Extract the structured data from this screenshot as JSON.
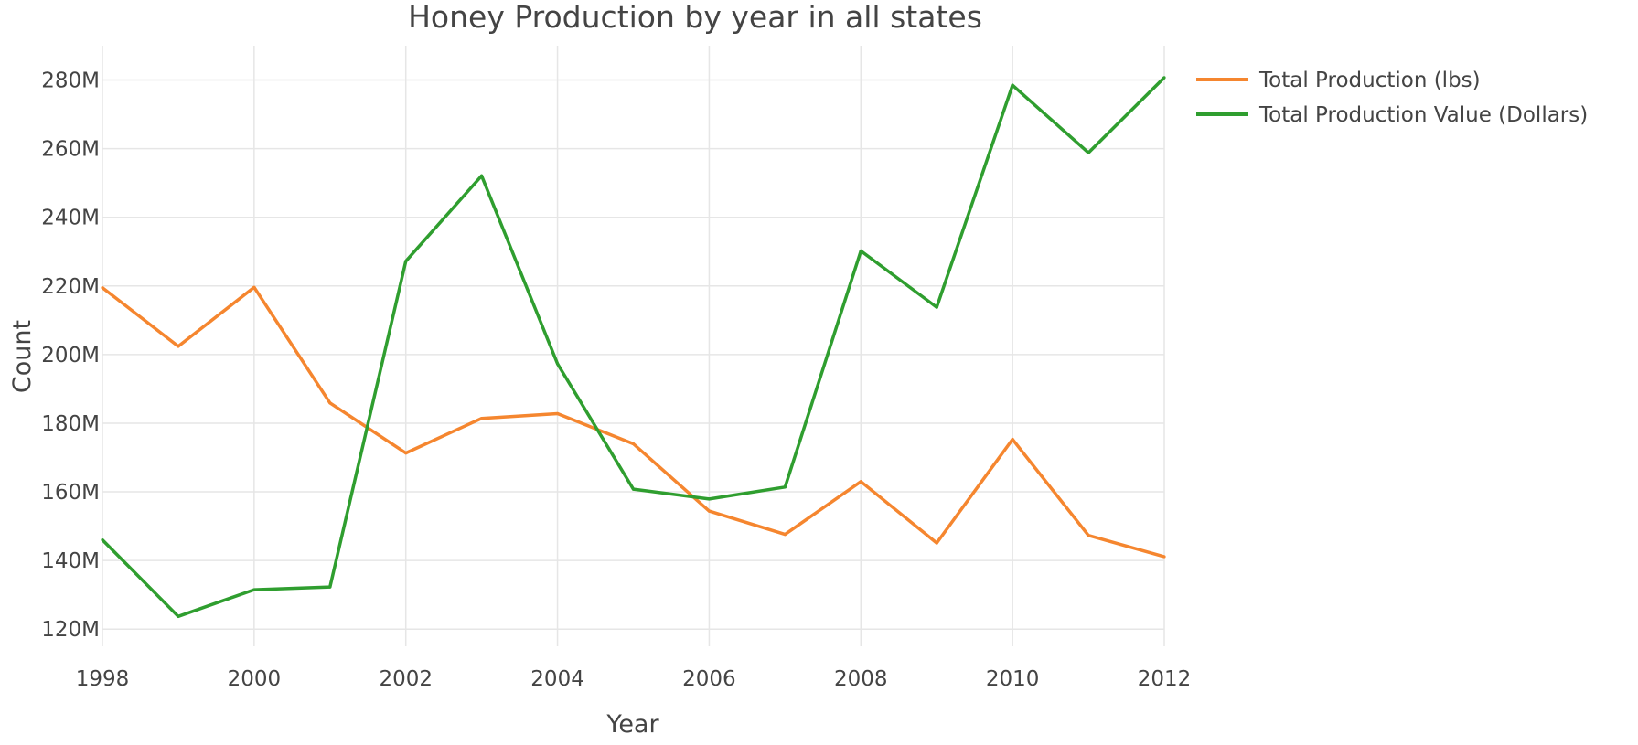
{
  "chart_data": {
    "type": "line",
    "title": "Honey Production by year in all states",
    "xlabel": "Year",
    "ylabel": "Count",
    "x": [
      1998,
      1999,
      2000,
      2001,
      2002,
      2003,
      2004,
      2005,
      2006,
      2007,
      2008,
      2009,
      2010,
      2011,
      2012
    ],
    "xlim": [
      1998,
      2012
    ],
    "ylim": [
      115000000,
      290000000
    ],
    "x_ticks": [
      1998,
      2000,
      2002,
      2004,
      2006,
      2008,
      2010,
      2012
    ],
    "x_tick_labels": [
      "1998",
      "2000",
      "2002",
      "2004",
      "2006",
      "2008",
      "2010",
      "2012"
    ],
    "y_ticks": [
      120000000,
      140000000,
      160000000,
      180000000,
      200000000,
      220000000,
      240000000,
      260000000,
      280000000
    ],
    "y_tick_labels": [
      "120M",
      "140M",
      "160M",
      "180M",
      "200M",
      "220M",
      "240M",
      "260M",
      "280M"
    ],
    "grid": true,
    "legend_position": "top-right",
    "series": [
      {
        "name": "Total Production (lbs)",
        "color": "#f5862f",
        "values": [
          219500000,
          202400000,
          219600000,
          185900000,
          171300000,
          181400000,
          182800000,
          174000000,
          154400000,
          147600000,
          163000000,
          145100000,
          175300000,
          147300000,
          141100000
        ]
      },
      {
        "name": "Total Production Value (Dollars)",
        "color": "#2f9e2f",
        "values": [
          146000000,
          123700000,
          131500000,
          132300000,
          227200000,
          252100000,
          197300000,
          160800000,
          157900000,
          161400000,
          230200000,
          213800000,
          278500000,
          258800000,
          280700000
        ]
      }
    ]
  }
}
